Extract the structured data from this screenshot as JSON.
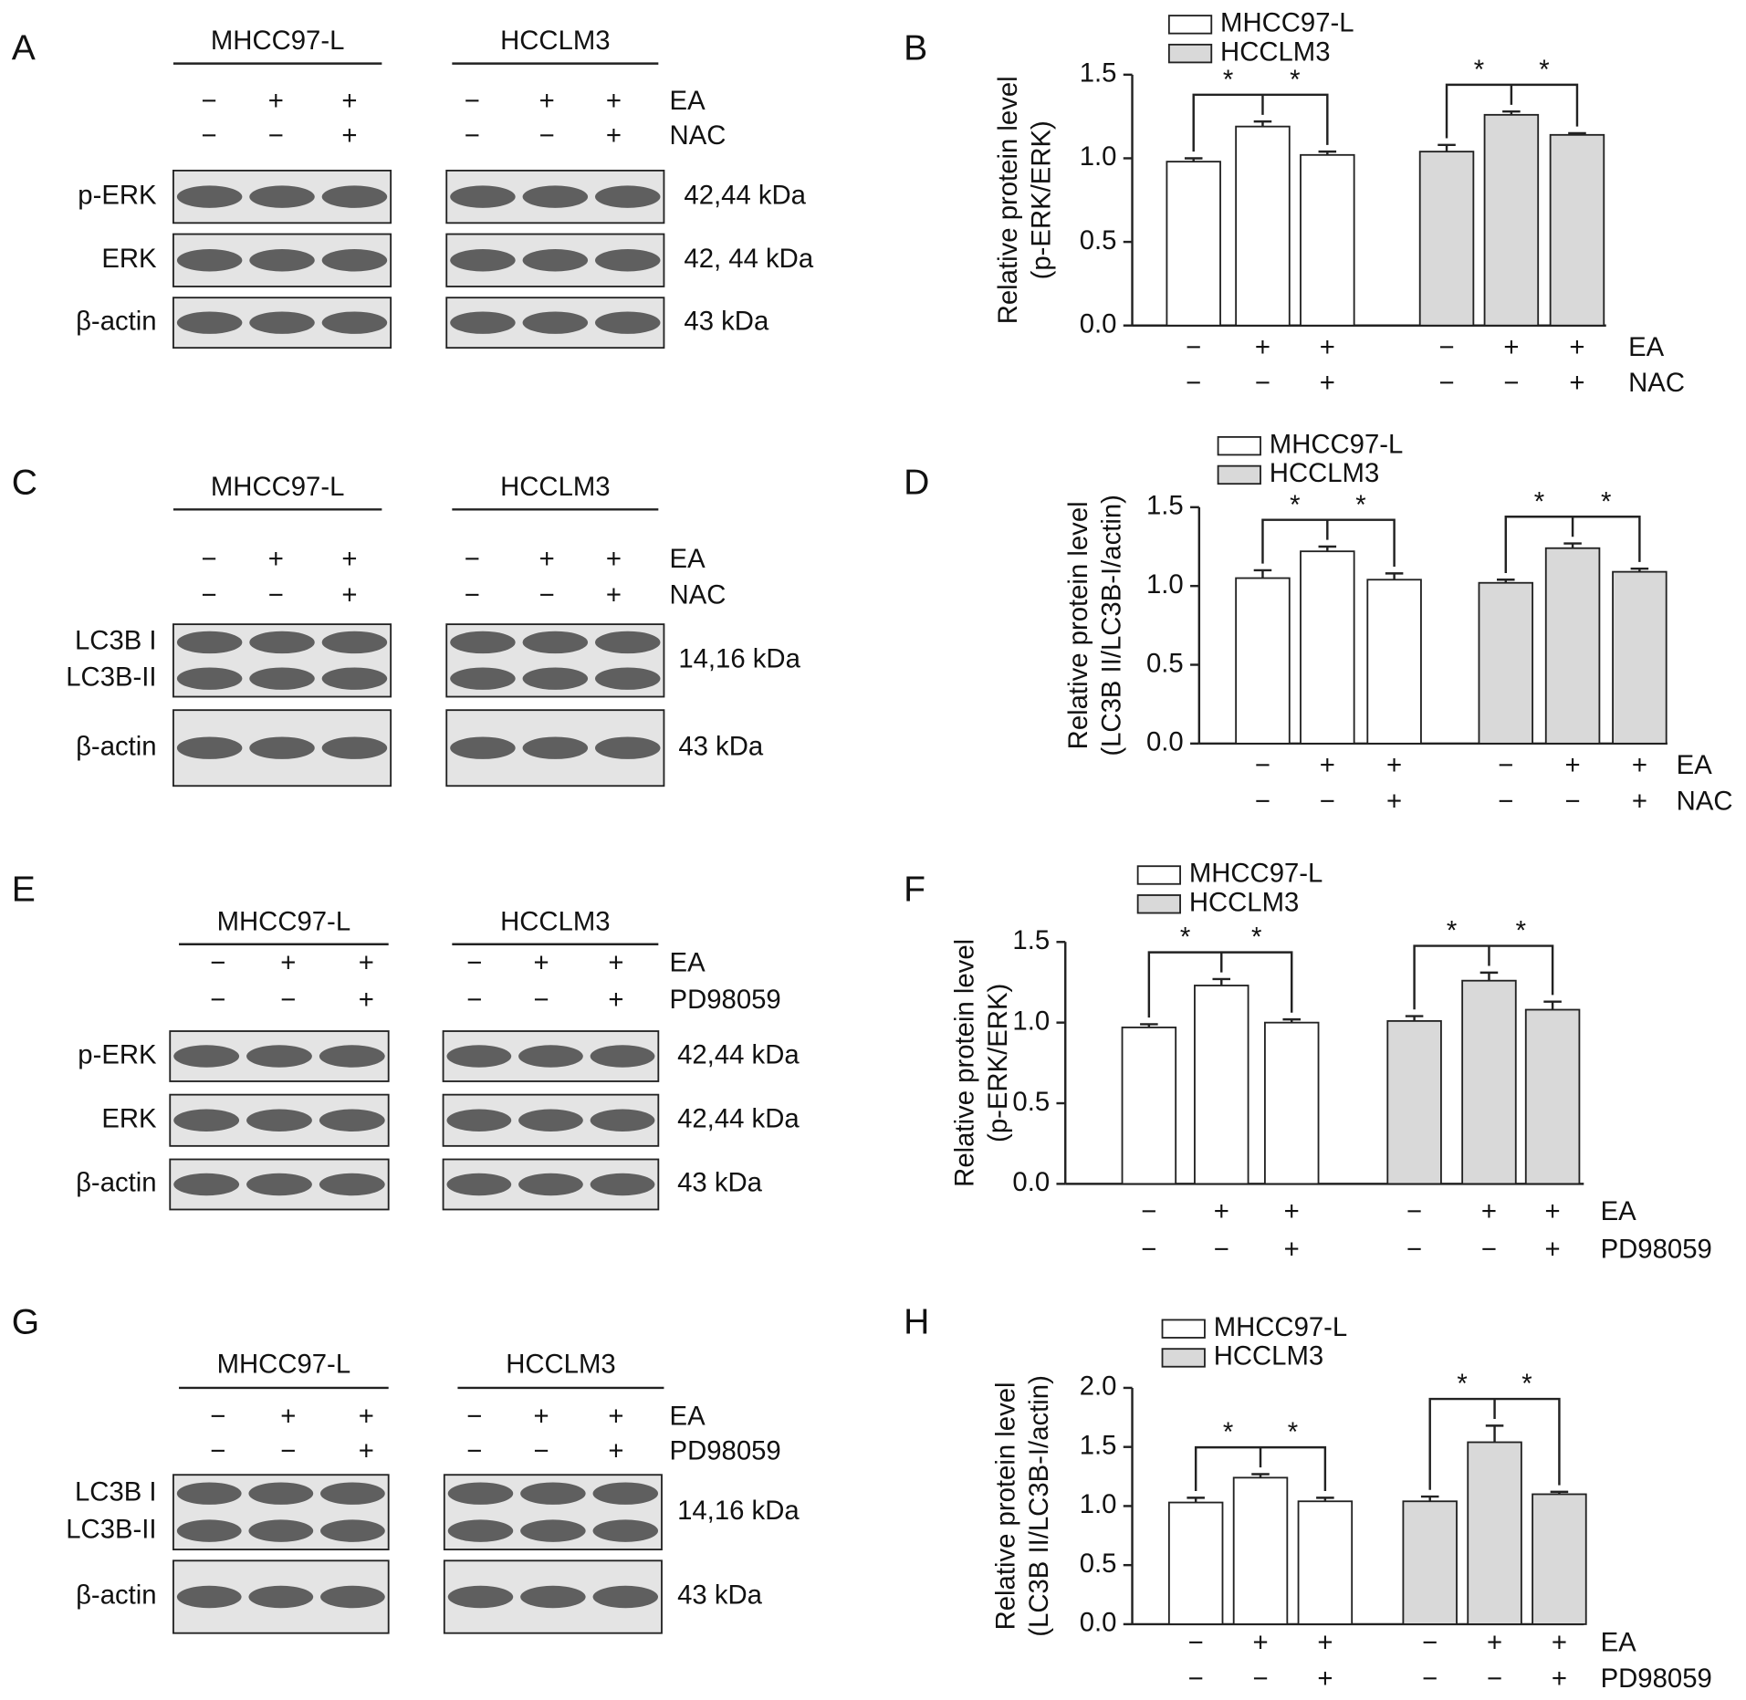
{
  "blots": [
    {
      "panel": "A",
      "cell_lines": [
        "MHCC97-L",
        "HCCLM3"
      ],
      "conditions": [
        {
          "name": "EA",
          "signs": [
            "−",
            "+",
            "+",
            "−",
            "+",
            "+"
          ]
        },
        {
          "name": "NAC",
          "signs": [
            "−",
            "−",
            "+",
            "−",
            "−",
            "+"
          ]
        }
      ],
      "rows": [
        {
          "labels": [
            "p-ERK"
          ],
          "size": "42,44 kDa"
        },
        {
          "labels": [
            "ERK"
          ],
          "size": "42, 44 kDa"
        },
        {
          "labels": [
            "β-actin"
          ],
          "size": "43 kDa"
        }
      ]
    },
    {
      "panel": "C",
      "cell_lines": [
        "MHCC97-L",
        "HCCLM3"
      ],
      "conditions": [
        {
          "name": "EA",
          "signs": [
            "−",
            "+",
            "+",
            "−",
            "+",
            "+"
          ]
        },
        {
          "name": "NAC",
          "signs": [
            "−",
            "−",
            "+",
            "−",
            "−",
            "+"
          ]
        }
      ],
      "rows": [
        {
          "labels": [
            "LC3B I",
            "LC3B-II"
          ],
          "size": "14,16 kDa"
        },
        {
          "labels": [
            "β-actin"
          ],
          "size": "43 kDa"
        }
      ]
    },
    {
      "panel": "E",
      "cell_lines": [
        "MHCC97-L",
        "HCCLM3"
      ],
      "conditions": [
        {
          "name": "EA",
          "signs": [
            "−",
            "+",
            "+",
            "−",
            "+",
            "+"
          ]
        },
        {
          "name": "PD98059",
          "signs": [
            "−",
            "−",
            "+",
            "−",
            "−",
            "+"
          ]
        }
      ],
      "rows": [
        {
          "labels": [
            "p-ERK"
          ],
          "size": "42,44 kDa"
        },
        {
          "labels": [
            "ERK"
          ],
          "size": "42,44 kDa"
        },
        {
          "labels": [
            "β-actin"
          ],
          "size": "43 kDa"
        }
      ]
    },
    {
      "panel": "G",
      "cell_lines": [
        "MHCC97-L",
        "HCCLM3"
      ],
      "conditions": [
        {
          "name": "EA",
          "signs": [
            "−",
            "+",
            "+",
            "−",
            "+",
            "+"
          ]
        },
        {
          "name": "PD98059",
          "signs": [
            "−",
            "−",
            "+",
            "−",
            "−",
            "+"
          ]
        }
      ],
      "rows": [
        {
          "labels": [
            "LC3B I",
            "LC3B-II"
          ],
          "size": "14,16 kDa"
        },
        {
          "labels": [
            "β-actin"
          ],
          "size": "43 kDa"
        }
      ]
    }
  ],
  "chart_data": [
    {
      "type": "bar",
      "panel": "B",
      "ylabel": [
        "Relative protein level",
        "(p-ERK/ERK)"
      ],
      "ylim": [
        0,
        1.5
      ],
      "yticks": [
        {
          "value": 0,
          "label": "0.0"
        },
        0.5,
        {
          "value": 1,
          "label": "1.0"
        },
        1.5
      ],
      "series": [
        {
          "name": "MHCC97-L",
          "color": "#ffffff",
          "values": [
            0.98,
            1.19,
            1.02
          ],
          "errors": [
            0.02,
            0.03,
            0.02
          ]
        },
        {
          "name": "HCCLM3",
          "color": "#d9d9d9",
          "values": [
            1.04,
            1.26,
            1.14
          ],
          "errors": [
            0.04,
            0.02,
            0.01
          ]
        }
      ],
      "conditions": [
        {
          "name": "EA",
          "signs": [
            "−",
            "+",
            "+",
            "−",
            "+",
            "+"
          ]
        },
        {
          "name": "NAC",
          "signs": [
            "−",
            "−",
            "+",
            "−",
            "−",
            "+"
          ]
        }
      ],
      "significance": "*"
    },
    {
      "type": "bar",
      "panel": "D",
      "ylabel": [
        "Relative protein level",
        "(LC3B II/LC3B-I/actin)"
      ],
      "ylim": [
        0,
        1.5
      ],
      "yticks": [
        {
          "value": 0,
          "label": "0.0"
        },
        0.5,
        {
          "value": 1,
          "label": "1.0"
        },
        1.5
      ],
      "series": [
        {
          "name": "MHCC97-L",
          "color": "#ffffff",
          "values": [
            1.05,
            1.22,
            1.04
          ],
          "errors": [
            0.05,
            0.03,
            0.04
          ]
        },
        {
          "name": "HCCLM3",
          "color": "#d9d9d9",
          "values": [
            1.02,
            1.24,
            1.09
          ],
          "errors": [
            0.02,
            0.03,
            0.02
          ]
        }
      ],
      "conditions": [
        {
          "name": "EA",
          "signs": [
            "−",
            "+",
            "+",
            "−",
            "+",
            "+"
          ]
        },
        {
          "name": "NAC",
          "signs": [
            "−",
            "−",
            "+",
            "−",
            "−",
            "+"
          ]
        }
      ],
      "significance": "*"
    },
    {
      "type": "bar",
      "panel": "F",
      "ylabel": [
        "Relative protein level",
        "(p-ERK/ERK)"
      ],
      "ylim": [
        0,
        1.5
      ],
      "yticks": [
        {
          "value": 0,
          "label": "0.0"
        },
        0.5,
        {
          "value": 1,
          "label": "1.0"
        },
        1.5
      ],
      "series": [
        {
          "name": "MHCC97-L",
          "color": "#ffffff",
          "values": [
            0.97,
            1.23,
            1.0
          ],
          "errors": [
            0.02,
            0.04,
            0.02
          ]
        },
        {
          "name": "HCCLM3",
          "color": "#d9d9d9",
          "values": [
            1.01,
            1.26,
            1.08
          ],
          "errors": [
            0.03,
            0.05,
            0.05
          ]
        }
      ],
      "conditions": [
        {
          "name": "EA",
          "signs": [
            "−",
            "+",
            "+",
            "−",
            "+",
            "+"
          ]
        },
        {
          "name": "PD98059",
          "signs": [
            "−",
            "−",
            "+",
            "−",
            "−",
            "+"
          ]
        }
      ],
      "significance": "*"
    },
    {
      "type": "bar",
      "panel": "H",
      "ylabel": [
        "Relative protein level",
        "(LC3B II/LC3B-I/actin)"
      ],
      "ylim": [
        0,
        2
      ],
      "yticks": [
        {
          "value": 0,
          "label": "0.0"
        },
        0.5,
        {
          "value": 1,
          "label": "1.0"
        },
        1.5,
        {
          "value": 2,
          "label": "2.0"
        }
      ],
      "series": [
        {
          "name": "MHCC97-L",
          "color": "#ffffff",
          "values": [
            1.03,
            1.24,
            1.04
          ],
          "errors": [
            0.04,
            0.03,
            0.03
          ]
        },
        {
          "name": "HCCLM3",
          "color": "#d9d9d9",
          "values": [
            1.04,
            1.54,
            1.1
          ],
          "errors": [
            0.04,
            0.14,
            0.02
          ]
        }
      ],
      "conditions": [
        {
          "name": "EA",
          "signs": [
            "−",
            "+",
            "+",
            "−",
            "+",
            "+"
          ]
        },
        {
          "name": "PD98059",
          "signs": [
            "−",
            "−",
            "+",
            "−",
            "−",
            "+"
          ]
        }
      ],
      "significance": "*"
    }
  ]
}
